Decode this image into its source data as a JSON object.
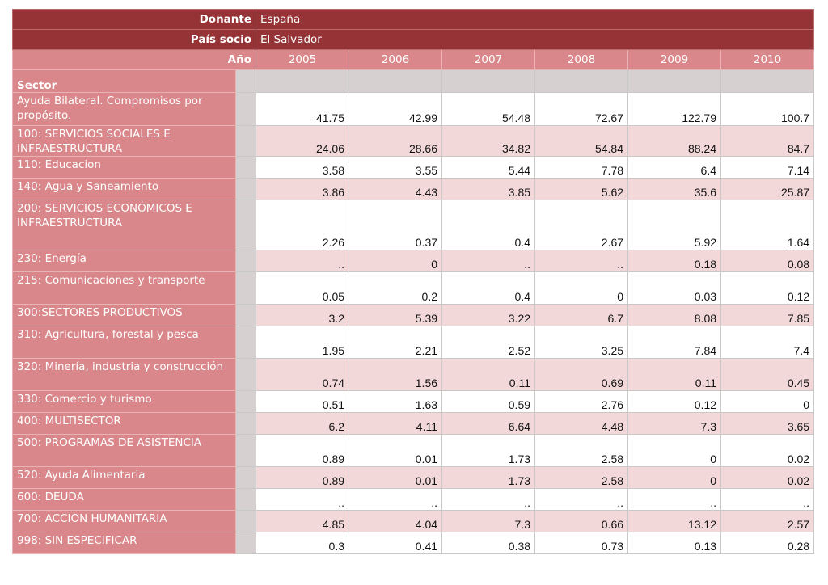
{
  "header": {
    "donante_label": "Donante",
    "donante_value": "España",
    "pais_label": "País socio",
    "pais_value": "El Salvador",
    "anio_label": "Año",
    "years": [
      "2005",
      "2006",
      "2007",
      "2008",
      "2009",
      "2010"
    ],
    "sector_label": "Sector"
  },
  "rows": [
    {
      "label": "Ayuda Bilateral. Compromisos por propósito.",
      "values": [
        "41.75",
        "42.99",
        "54.48",
        "72.67",
        "122.79",
        "100.7"
      ]
    },
    {
      "label": "100: SERVICIOS SOCIALES E INFRAESTRUCTURA",
      "values": [
        "24.06",
        "28.66",
        "34.82",
        "54.84",
        "88.24",
        "84.7"
      ]
    },
    {
      "label": "110: Educacion",
      "values": [
        "3.58",
        "3.55",
        "5.44",
        "7.78",
        "6.4",
        "7.14"
      ]
    },
    {
      "label": "140: Agua y Saneamiento",
      "values": [
        "3.86",
        "4.43",
        "3.85",
        "5.62",
        "35.6",
        "25.87"
      ]
    },
    {
      "label": "200: SERVICIOS ECONÓMICOS E INFRAESTRUCTURA",
      "values": [
        "2.26",
        "0.37",
        "0.4",
        "2.67",
        "5.92",
        "1.64"
      ]
    },
    {
      "label": "230: Energía",
      "values": [
        "..",
        "0",
        "..",
        "..",
        "0.18",
        "0.08"
      ]
    },
    {
      "label": "215: Comunicaciones y transporte",
      "values": [
        "0.05",
        "0.2",
        "0.4",
        "0",
        "0.03",
        "0.12"
      ]
    },
    {
      "label": "300:SECTORES PRODUCTIVOS",
      "values": [
        "3.2",
        "5.39",
        "3.22",
        "6.7",
        "8.08",
        "7.85"
      ]
    },
    {
      "label": "310: Agricultura, forestal y pesca",
      "values": [
        "1.95",
        "2.21",
        "2.52",
        "3.25",
        "7.84",
        "7.4"
      ]
    },
    {
      "label": "320: Minería, industria y construcción",
      "values": [
        "0.74",
        "1.56",
        "0.11",
        "0.69",
        "0.11",
        "0.45"
      ]
    },
    {
      "label": "330: Comercio y turismo",
      "values": [
        "0.51",
        "1.63",
        "0.59",
        "2.76",
        "0.12",
        "0"
      ]
    },
    {
      "label": "400: MULTISECTOR",
      "values": [
        "6.2",
        "4.11",
        "6.64",
        "4.48",
        "7.3",
        "3.65"
      ]
    },
    {
      "label": "500: PROGRAMAS DE ASISTENCIA",
      "values": [
        "0.89",
        "0.01",
        "1.73",
        "2.58",
        "0",
        "0.02"
      ]
    },
    {
      "label": "520: Ayuda Alimentaria",
      "values": [
        "0.89",
        "0.01",
        "1.73",
        "2.58",
        "0",
        "0.02"
      ]
    },
    {
      "label": "600: DEUDA",
      "values": [
        "..",
        "..",
        "..",
        "..",
        "..",
        ".."
      ]
    },
    {
      "label": "700: ACCION HUMANITARIA",
      "values": [
        "4.85",
        "4.04",
        "7.3",
        "0.66",
        "13.12",
        "2.57"
      ]
    },
    {
      "label": "998: SIN ESPECIFICAR",
      "values": [
        "0.3",
        "0.41",
        "0.38",
        "0.73",
        "0.13",
        "0.28"
      ]
    }
  ]
}
